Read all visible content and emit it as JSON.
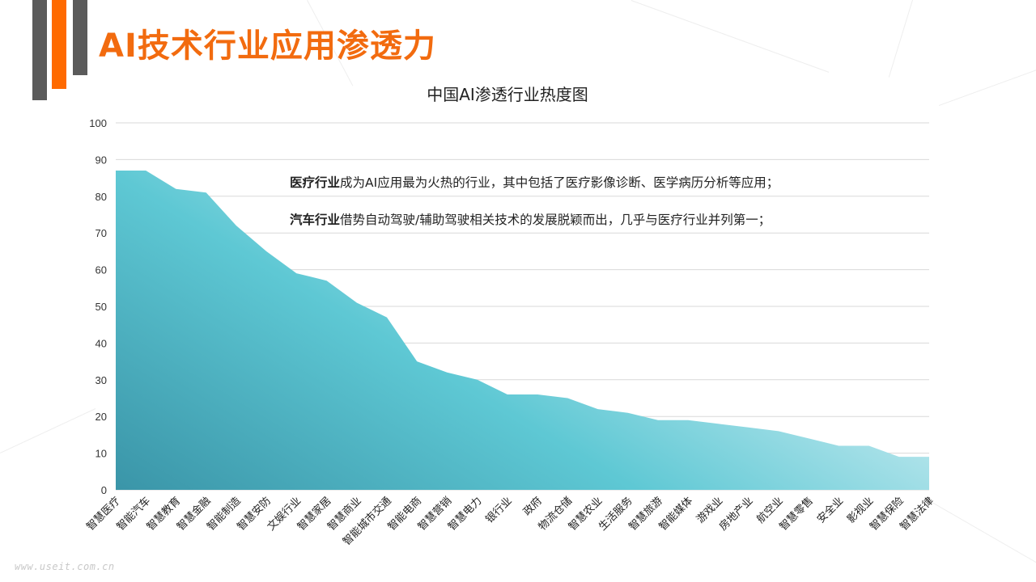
{
  "slide": {
    "title": "AI技术行业应用渗透力",
    "watermark": "www.useit.com.cn"
  },
  "notes": [
    {
      "bold": "医疗行业",
      "text": "成为AI应用最为火热的行业，其中包括了医疗影像诊断、医学病历分析等应用；"
    },
    {
      "bold": "汽车行业",
      "text": "借势自动驾驶/辅助驾驶相关技术的发展脱颖而出，几乎与医疗行业并列第一；"
    }
  ],
  "colors": {
    "accent_orange": "#ff6a00",
    "title_orange": "#f26b0f",
    "bar_gray": "#5b5b5b",
    "area_dark": "#3a98aa",
    "area_mid": "#5ec8d4",
    "area_light": "#e2f3f7",
    "gridline": "#d9d9d9"
  },
  "chart_data": {
    "type": "area",
    "title": "中国AI渗透行业热度图",
    "xlabel": "",
    "ylabel": "",
    "ylim": [
      0,
      100
    ],
    "yticks": [
      0,
      10,
      20,
      30,
      40,
      50,
      60,
      70,
      80,
      90,
      100
    ],
    "grid": true,
    "legend": null,
    "categories": [
      "智慧医疗",
      "智能汽车",
      "智慧教育",
      "智慧金融",
      "智能制造",
      "智慧安防",
      "文娱行业",
      "智慧家居",
      "智慧商业",
      "智能城市交通",
      "智能电商",
      "智慧营销",
      "智慧电力",
      "银行业",
      "政府",
      "物流仓储",
      "智慧农业",
      "生活服务",
      "智慧旅游",
      "智能媒体",
      "游戏业",
      "房地产业",
      "航空业",
      "智慧零售",
      "安全业",
      "影视业",
      "智慧保险",
      "智慧法律"
    ],
    "values": [
      87,
      87,
      82,
      81,
      72,
      65,
      59,
      57,
      51,
      47,
      35,
      32,
      30,
      26,
      26,
      25,
      22,
      21,
      19,
      19,
      18,
      17,
      16,
      14,
      12,
      12,
      9,
      9
    ]
  }
}
